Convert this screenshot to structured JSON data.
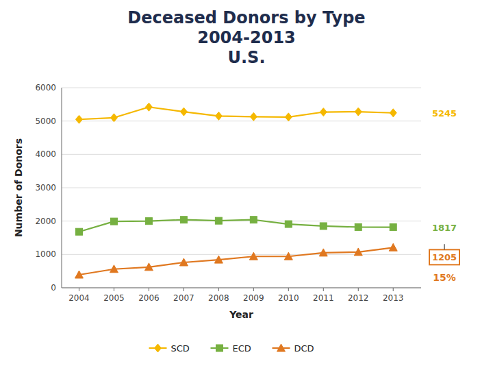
{
  "chart_data": {
    "type": "line",
    "title": "Deceased Donors by Type\n2004-2013\nU.S.",
    "x_label": "Year",
    "y_label": "Number of Donors",
    "x": [
      2004,
      2005,
      2006,
      2007,
      2008,
      2009,
      2010,
      2011,
      2012,
      2013
    ],
    "series": [
      {
        "name": "SCD",
        "color": "#F5B800",
        "marker": "diamond",
        "values": [
          5050,
          5100,
          5420,
          5280,
          5150,
          5130,
          5120,
          5270,
          5280,
          5245
        ]
      },
      {
        "name": "ECD",
        "color": "#76B041",
        "marker": "square",
        "values": [
          1680,
          1990,
          2000,
          2040,
          2010,
          2040,
          1910,
          1850,
          1820,
          1817
        ]
      },
      {
        "name": "DCD",
        "color": "#E07820",
        "marker": "triangle",
        "values": [
          390,
          560,
          620,
          760,
          840,
          940,
          940,
          1050,
          1070,
          1205
        ]
      }
    ],
    "xlim": [
      2003.5,
      2013.8
    ],
    "xticks": [
      2004,
      2005,
      2006,
      2007,
      2008,
      2009,
      2010,
      2011,
      2012,
      2013
    ],
    "ylim": [
      0,
      6000
    ],
    "yticks": [
      0,
      1000,
      2000,
      3000,
      4000,
      5000,
      6000
    ],
    "grid": true,
    "legend": "bottom",
    "annotations": [
      {
        "text": "5245",
        "color": "#F5B800"
      },
      {
        "text": "1817",
        "color": "#76B041"
      },
      {
        "text": "1205",
        "color": "#E07820"
      },
      {
        "text": "15%",
        "color": "#E07820"
      }
    ]
  }
}
